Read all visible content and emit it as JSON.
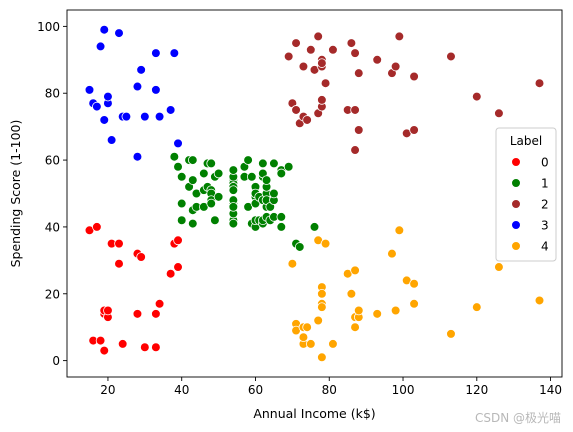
{
  "watermark": "CSDN @极光喵",
  "chart_data": {
    "type": "scatter",
    "xlabel": "Annual Income (k$)",
    "ylabel": "Spending Score (1-100)",
    "xlim": [
      8.9,
      143.1
    ],
    "ylim": [
      -4.9,
      104.9
    ],
    "xticks": [
      20,
      40,
      60,
      80,
      100,
      120,
      140
    ],
    "yticks": [
      0,
      20,
      40,
      60,
      80,
      100
    ],
    "grid": false,
    "legend": {
      "title": "Label",
      "placement": "right"
    },
    "series": [
      {
        "name": "0",
        "color": "#ff0000",
        "points": [
          [
            15,
            39
          ],
          [
            16,
            6
          ],
          [
            17,
            40
          ],
          [
            18,
            6
          ],
          [
            19,
            3
          ],
          [
            19,
            14
          ],
          [
            19,
            15
          ],
          [
            20,
            13
          ],
          [
            20,
            15
          ],
          [
            21,
            35
          ],
          [
            23,
            29
          ],
          [
            23,
            35
          ],
          [
            24,
            5
          ],
          [
            28,
            14
          ],
          [
            28,
            32
          ],
          [
            29,
            31
          ],
          [
            30,
            4
          ],
          [
            33,
            4
          ],
          [
            33,
            14
          ],
          [
            34,
            17
          ],
          [
            37,
            26
          ],
          [
            38,
            35
          ],
          [
            39,
            36
          ],
          [
            39,
            28
          ]
        ]
      },
      {
        "name": "1",
        "color": "#008000",
        "points": [
          [
            38,
            61
          ],
          [
            39,
            58
          ],
          [
            40,
            55
          ],
          [
            40,
            47
          ],
          [
            40,
            42
          ],
          [
            42,
            52
          ],
          [
            42,
            60
          ],
          [
            43,
            60
          ],
          [
            43,
            54
          ],
          [
            43,
            45
          ],
          [
            43,
            41
          ],
          [
            44,
            50
          ],
          [
            44,
            46
          ],
          [
            46,
            51
          ],
          [
            46,
            46
          ],
          [
            46,
            56
          ],
          [
            47,
            52
          ],
          [
            47,
            59
          ],
          [
            48,
            51
          ],
          [
            48,
            59
          ],
          [
            48,
            50
          ],
          [
            48,
            48
          ],
          [
            48,
            59
          ],
          [
            48,
            47
          ],
          [
            49,
            55
          ],
          [
            49,
            42
          ],
          [
            50,
            49
          ],
          [
            50,
            56
          ],
          [
            54,
            47
          ],
          [
            54,
            54
          ],
          [
            54,
            53
          ],
          [
            54,
            48
          ],
          [
            54,
            52
          ],
          [
            54,
            42
          ],
          [
            54,
            51
          ],
          [
            54,
            55
          ],
          [
            54,
            41
          ],
          [
            54,
            44
          ],
          [
            54,
            57
          ],
          [
            54,
            46
          ],
          [
            57,
            58
          ],
          [
            57,
            55
          ],
          [
            58,
            60
          ],
          [
            58,
            46
          ],
          [
            59,
            55
          ],
          [
            59,
            41
          ],
          [
            60,
            49
          ],
          [
            60,
            40
          ],
          [
            60,
            42
          ],
          [
            60,
            52
          ],
          [
            60,
            47
          ],
          [
            60,
            50
          ],
          [
            61,
            42
          ],
          [
            61,
            49
          ],
          [
            62,
            41
          ],
          [
            62,
            48
          ],
          [
            62,
            59
          ],
          [
            62,
            55
          ],
          [
            62,
            56
          ],
          [
            62,
            42
          ],
          [
            63,
            50
          ],
          [
            63,
            46
          ],
          [
            63,
            43
          ],
          [
            63,
            48
          ],
          [
            63,
            52
          ],
          [
            63,
            54
          ],
          [
            64,
            42
          ],
          [
            64,
            46
          ],
          [
            65,
            48
          ],
          [
            65,
            50
          ],
          [
            65,
            43
          ],
          [
            65,
            59
          ],
          [
            67,
            43
          ],
          [
            67,
            57
          ],
          [
            67,
            56
          ],
          [
            67,
            40
          ],
          [
            69,
            58
          ],
          [
            71,
            35
          ],
          [
            72,
            34
          ],
          [
            76,
            40
          ]
        ]
      },
      {
        "name": "2",
        "color": "#a52a2a",
        "points": [
          [
            69,
            91
          ],
          [
            70,
            77
          ],
          [
            71,
            95
          ],
          [
            71,
            75
          ],
          [
            71,
            75
          ],
          [
            72,
            71
          ],
          [
            73,
            88
          ],
          [
            73,
            73
          ],
          [
            74,
            72
          ],
          [
            75,
            93
          ],
          [
            76,
            87
          ],
          [
            77,
            97
          ],
          [
            77,
            74
          ],
          [
            78,
            90
          ],
          [
            78,
            76
          ],
          [
            78,
            88
          ],
          [
            78,
            89
          ],
          [
            78,
            78
          ],
          [
            79,
            83
          ],
          [
            81,
            93
          ],
          [
            85,
            75
          ],
          [
            86,
            95
          ],
          [
            87,
            63
          ],
          [
            87,
            75
          ],
          [
            87,
            92
          ],
          [
            88,
            86
          ],
          [
            88,
            69
          ],
          [
            93,
            90
          ],
          [
            97,
            86
          ],
          [
            98,
            88
          ],
          [
            99,
            97
          ],
          [
            101,
            68
          ],
          [
            103,
            85
          ],
          [
            103,
            69
          ],
          [
            113,
            91
          ],
          [
            120,
            79
          ],
          [
            126,
            74
          ],
          [
            137,
            83
          ]
        ]
      },
      {
        "name": "3",
        "color": "#0000ff",
        "points": [
          [
            15,
            81
          ],
          [
            16,
            77
          ],
          [
            17,
            76
          ],
          [
            18,
            94
          ],
          [
            19,
            72
          ],
          [
            19,
            99
          ],
          [
            20,
            77
          ],
          [
            20,
            79
          ],
          [
            21,
            66
          ],
          [
            23,
            98
          ],
          [
            24,
            73
          ],
          [
            25,
            73
          ],
          [
            28,
            82
          ],
          [
            28,
            61
          ],
          [
            29,
            87
          ],
          [
            30,
            73
          ],
          [
            33,
            92
          ],
          [
            33,
            81
          ],
          [
            34,
            73
          ],
          [
            37,
            75
          ],
          [
            38,
            92
          ],
          [
            39,
            65
          ]
        ]
      },
      {
        "name": "4",
        "color": "#ffa500",
        "points": [
          [
            70,
            29
          ],
          [
            71,
            11
          ],
          [
            71,
            9
          ],
          [
            73,
            5
          ],
          [
            73,
            7
          ],
          [
            73,
            10
          ],
          [
            74,
            10
          ],
          [
            75,
            5
          ],
          [
            77,
            12
          ],
          [
            77,
            36
          ],
          [
            78,
            22
          ],
          [
            78,
            20
          ],
          [
            78,
            17
          ],
          [
            78,
            16
          ],
          [
            78,
            1
          ],
          [
            79,
            35
          ],
          [
            81,
            5
          ],
          [
            85,
            26
          ],
          [
            86,
            20
          ],
          [
            87,
            27
          ],
          [
            87,
            13
          ],
          [
            87,
            10
          ],
          [
            88,
            13
          ],
          [
            88,
            15
          ],
          [
            93,
            14
          ],
          [
            97,
            32
          ],
          [
            98,
            15
          ],
          [
            99,
            39
          ],
          [
            101,
            24
          ],
          [
            103,
            23
          ],
          [
            103,
            17
          ],
          [
            113,
            8
          ],
          [
            120,
            16
          ],
          [
            126,
            28
          ],
          [
            137,
            18
          ]
        ]
      }
    ]
  }
}
